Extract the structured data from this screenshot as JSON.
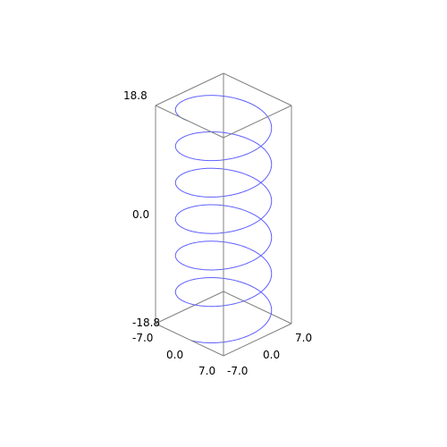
{
  "chart_data": {
    "type": "line",
    "plot_kind": "3d-parametric-helix",
    "title": "",
    "colors": {
      "curve": "#5f5fff",
      "box": "#808080",
      "background": "#ffffff",
      "text": "#000000"
    },
    "axes": {
      "x": {
        "range": [
          -7.0,
          7.0
        ],
        "tick_labels": [
          "-7.0",
          "0.0",
          "7.0"
        ]
      },
      "y": {
        "range": [
          -7.0,
          7.0
        ],
        "tick_labels": [
          "-7.0",
          "0.0",
          "7.0"
        ]
      },
      "z": {
        "range": [
          -18.8,
          18.8
        ],
        "tick_labels": [
          "-18.8",
          "0.0",
          "18.8"
        ]
      }
    },
    "series": [
      {
        "parametric": {
          "x": "7*cos(t)",
          "y": "7*sin(t)",
          "z": "t",
          "t_range": [
            -18.8,
            18.8
          ]
        }
      }
    ],
    "grid": false,
    "bounding_box": true
  }
}
